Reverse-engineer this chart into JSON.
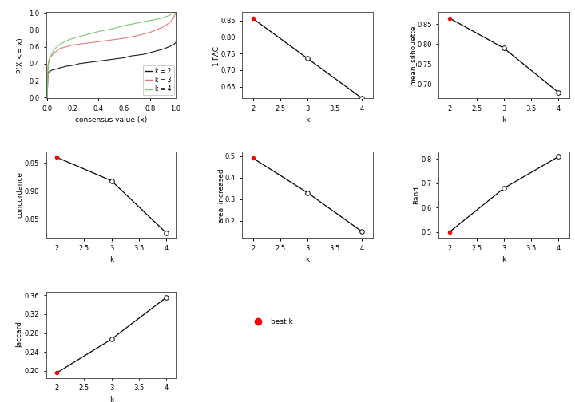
{
  "ecdf": {
    "k2_x": [
      0.0,
      0.005,
      0.01,
      0.02,
      0.03,
      0.05,
      0.08,
      0.1,
      0.15,
      0.2,
      0.25,
      0.3,
      0.35,
      0.4,
      0.45,
      0.5,
      0.55,
      0.6,
      0.65,
      0.7,
      0.75,
      0.8,
      0.85,
      0.9,
      0.95,
      0.98,
      0.99,
      1.0
    ],
    "k2_y": [
      0.0,
      0.28,
      0.3,
      0.31,
      0.32,
      0.33,
      0.34,
      0.35,
      0.37,
      0.38,
      0.4,
      0.41,
      0.42,
      0.43,
      0.44,
      0.45,
      0.46,
      0.47,
      0.49,
      0.5,
      0.51,
      0.53,
      0.55,
      0.57,
      0.6,
      0.62,
      0.63,
      0.65
    ],
    "k3_x": [
      0.0,
      0.005,
      0.01,
      0.02,
      0.05,
      0.08,
      0.1,
      0.15,
      0.2,
      0.3,
      0.4,
      0.5,
      0.6,
      0.7,
      0.8,
      0.9,
      0.95,
      0.98,
      0.99,
      1.0
    ],
    "k3_y": [
      0.0,
      0.38,
      0.43,
      0.47,
      0.52,
      0.56,
      0.58,
      0.6,
      0.62,
      0.64,
      0.66,
      0.68,
      0.7,
      0.73,
      0.77,
      0.83,
      0.88,
      0.93,
      0.96,
      1.0
    ],
    "k4_x": [
      0.0,
      0.005,
      0.01,
      0.02,
      0.05,
      0.08,
      0.1,
      0.15,
      0.2,
      0.3,
      0.4,
      0.5,
      0.6,
      0.7,
      0.8,
      0.9,
      0.95,
      0.98,
      0.99,
      1.0
    ],
    "k4_y": [
      0.0,
      0.3,
      0.4,
      0.47,
      0.56,
      0.61,
      0.63,
      0.67,
      0.7,
      0.74,
      0.78,
      0.81,
      0.85,
      0.88,
      0.91,
      0.94,
      0.97,
      0.99,
      0.99,
      1.0
    ],
    "colors": {
      "k2": "#1a1a1a",
      "k3": "#e87878",
      "k4": "#78c878"
    },
    "xlabel": "consensus value (x)",
    "ylabel": "P(X <= x)",
    "legend_labels": [
      "k = 2",
      "k = 3",
      "k = 4"
    ]
  },
  "one_pac": {
    "k": [
      2,
      3,
      4
    ],
    "values": [
      0.855,
      0.735,
      0.615
    ],
    "best_k": 2,
    "ylabel": "1-PAC",
    "xlabel": "k",
    "yticks": [
      0.65,
      0.7,
      0.75,
      0.8,
      0.85
    ],
    "ylim": [
      0.615,
      0.875
    ]
  },
  "mean_silhouette": {
    "k": [
      2,
      3,
      4
    ],
    "values": [
      0.865,
      0.79,
      0.68
    ],
    "best_k": 2,
    "ylabel": "mean_silhouette",
    "xlabel": "k",
    "yticks": [
      0.7,
      0.75,
      0.8,
      0.85
    ],
    "ylim": [
      0.665,
      0.88
    ]
  },
  "concordance": {
    "k": [
      2,
      3,
      4
    ],
    "values": [
      0.96,
      0.918,
      0.825
    ],
    "best_k": 2,
    "ylabel": "concordance",
    "xlabel": "k",
    "yticks": [
      0.85,
      0.9,
      0.95
    ],
    "ylim": [
      0.815,
      0.97
    ]
  },
  "area_increased": {
    "k": [
      2,
      3,
      4
    ],
    "values": [
      0.49,
      0.33,
      0.15
    ],
    "best_k": 2,
    "ylabel": "area_increased",
    "xlabel": "k",
    "yticks": [
      0.2,
      0.3,
      0.4,
      0.5
    ],
    "ylim": [
      0.12,
      0.52
    ]
  },
  "rand": {
    "k": [
      2,
      3,
      4
    ],
    "values": [
      0.5,
      0.68,
      0.81
    ],
    "best_k": 2,
    "ylabel": "Rand",
    "xlabel": "k",
    "yticks": [
      0.5,
      0.6,
      0.7,
      0.8
    ],
    "ylim": [
      0.475,
      0.83
    ]
  },
  "jaccard": {
    "k": [
      2,
      3,
      4
    ],
    "values": [
      0.196,
      0.267,
      0.355
    ],
    "best_k": 2,
    "ylabel": "Jaccard",
    "xlabel": "k",
    "yticks": [
      0.2,
      0.24,
      0.28,
      0.32,
      0.36
    ],
    "ylim": [
      0.185,
      0.368
    ]
  },
  "best_k_color": "#ff0000",
  "open_circle_color": "#ffffff",
  "line_color": "#000000",
  "bg_color": "#ffffff",
  "font_size": 6.5,
  "tick_size": 6.0
}
